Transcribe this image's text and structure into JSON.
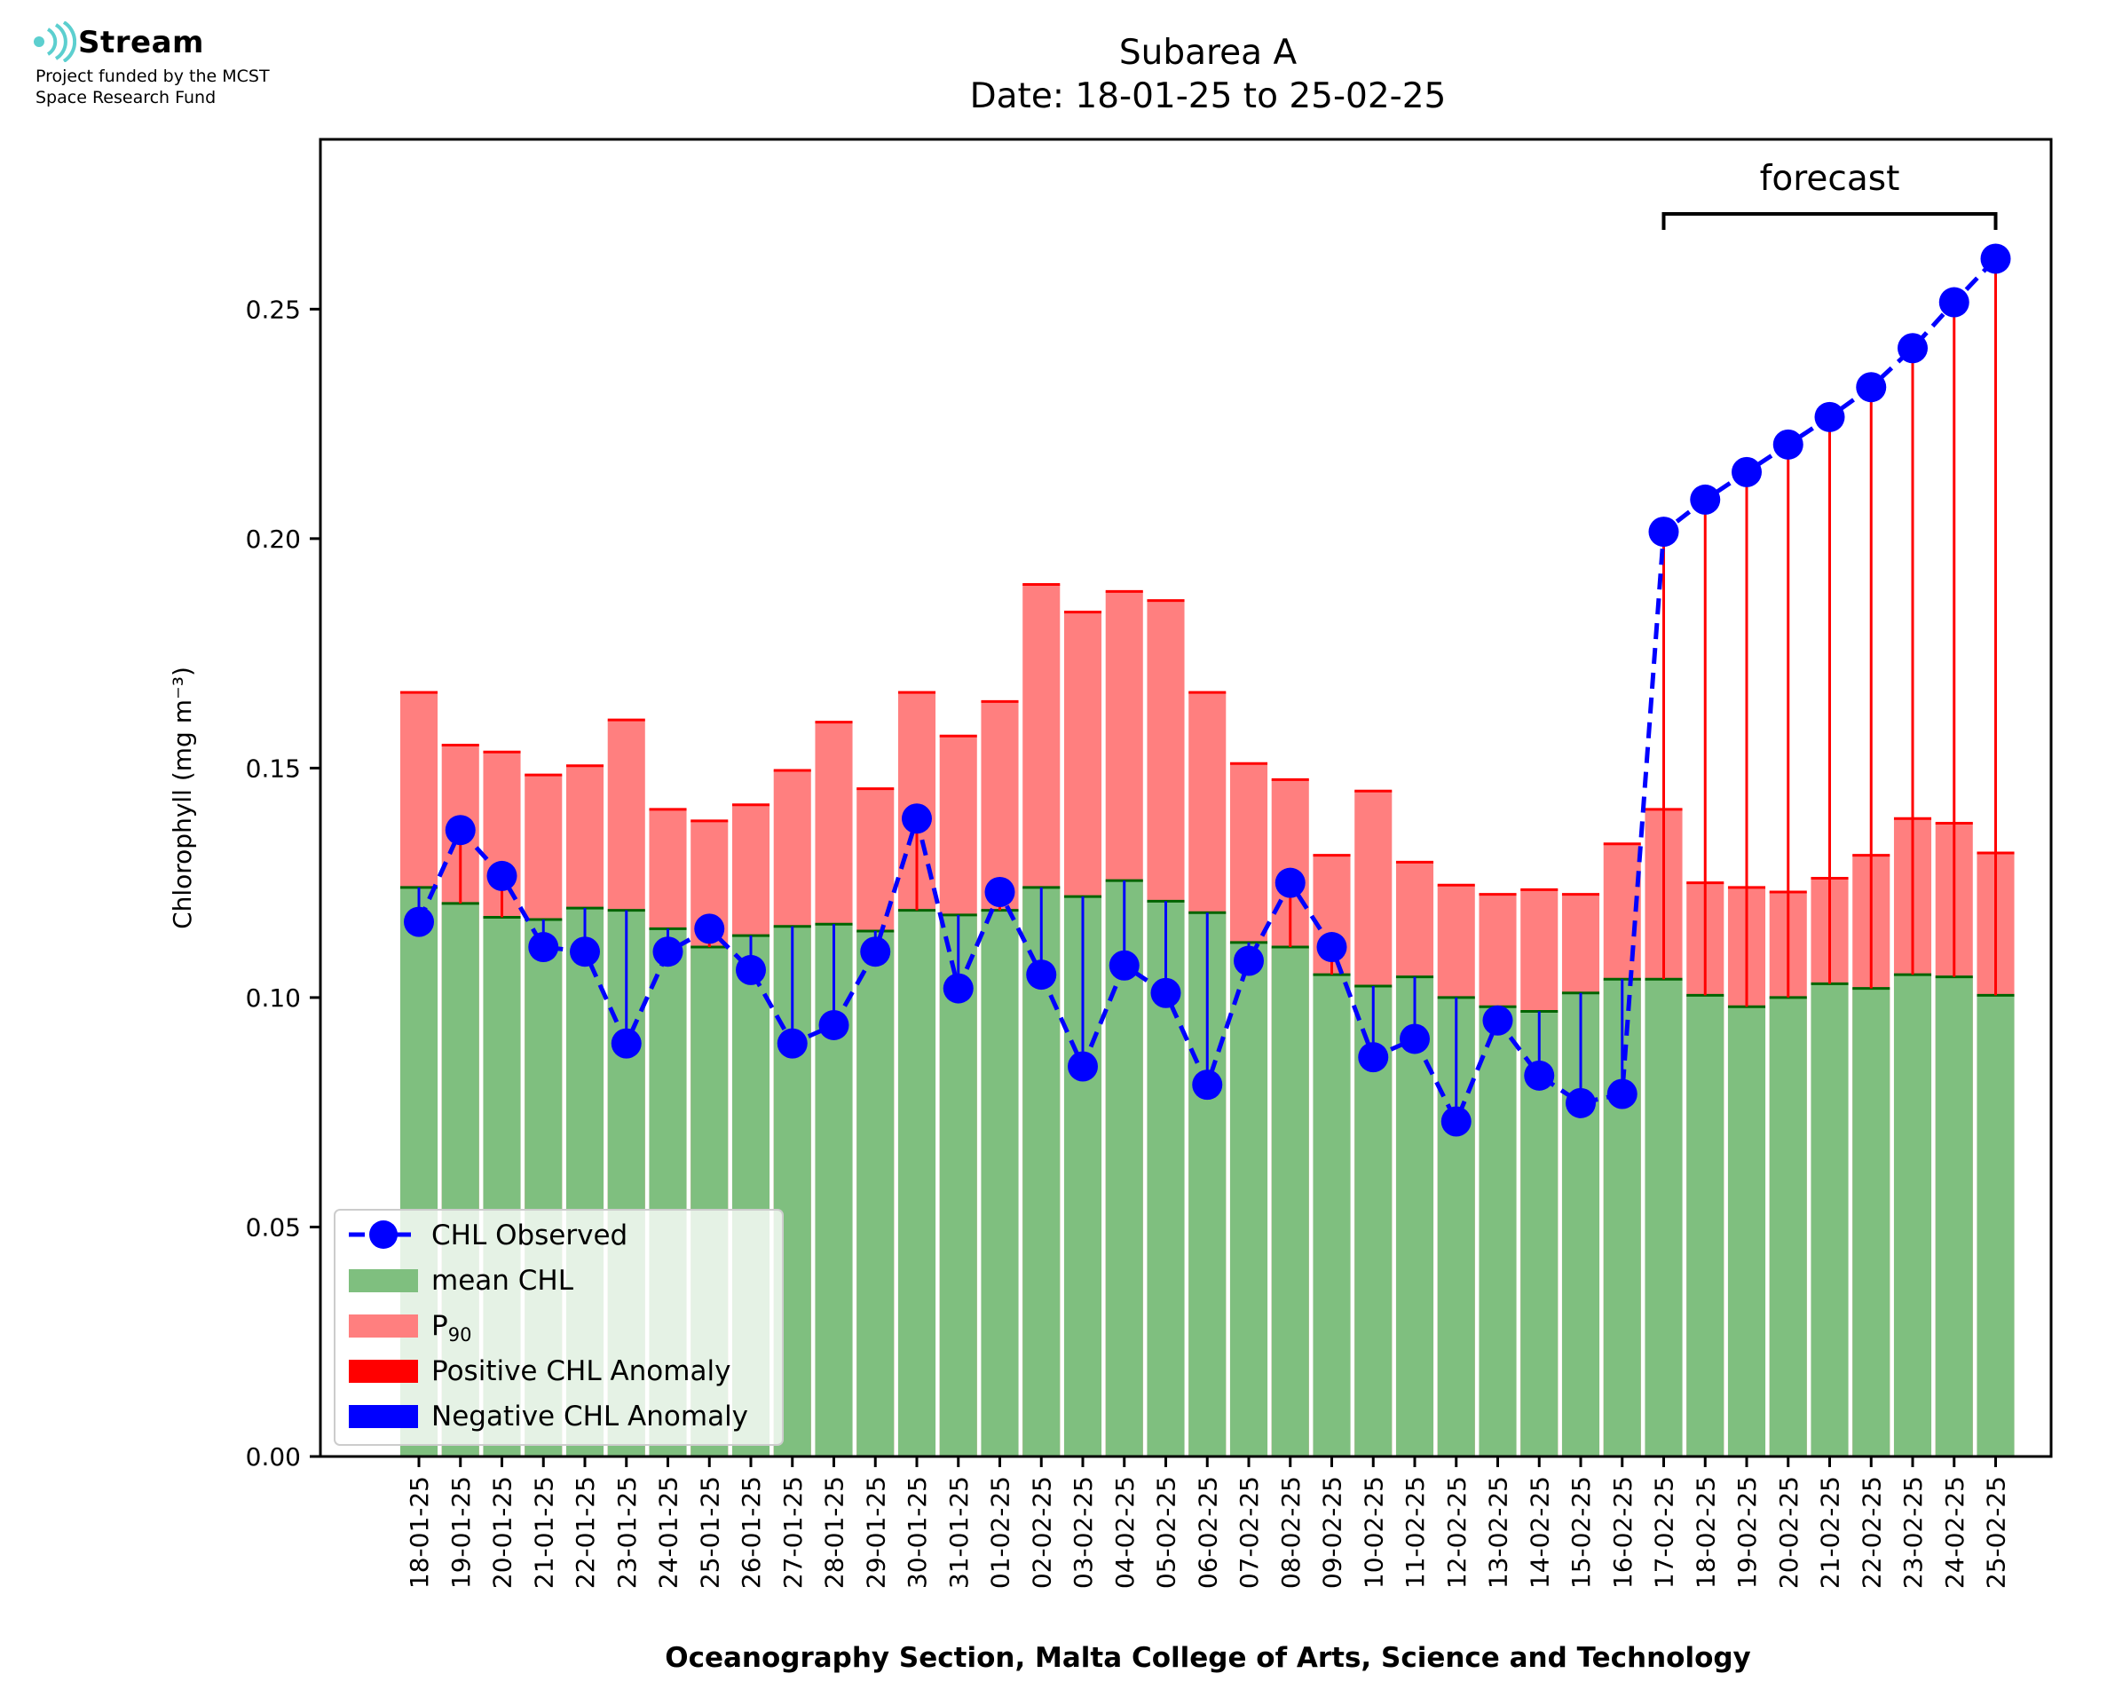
{
  "branding": {
    "logo_name": "Stream",
    "logo_tagline_1": "Project funded by the MCST",
    "logo_tagline_2": "Space Research Fund",
    "logo_icon": "stream-waves-icon"
  },
  "chart_data": {
    "type": "bar",
    "title": "Subarea A",
    "subtitle": "Date: 18-01-25 to 25-02-25",
    "xlabel": "Oceanography Section, Malta College of Arts, Science and Technology",
    "ylabel": "Chlorophyll (mg m⁻³)",
    "ylim": [
      0,
      0.287
    ],
    "yticks": [
      0.0,
      0.05,
      0.1,
      0.15,
      0.2,
      0.25
    ],
    "ytick_labels": [
      "0.00",
      "0.05",
      "0.10",
      "0.15",
      "0.20",
      "0.25"
    ],
    "categories": [
      "18-01-25",
      "19-01-25",
      "20-01-25",
      "21-01-25",
      "22-01-25",
      "23-01-25",
      "24-01-25",
      "25-01-25",
      "26-01-25",
      "27-01-25",
      "28-01-25",
      "29-01-25",
      "30-01-25",
      "31-01-25",
      "01-02-25",
      "02-02-25",
      "03-02-25",
      "04-02-25",
      "05-02-25",
      "06-02-25",
      "07-02-25",
      "08-02-25",
      "09-02-25",
      "10-02-25",
      "11-02-25",
      "12-02-25",
      "13-02-25",
      "14-02-25",
      "15-02-25",
      "16-02-25",
      "17-02-25",
      "18-02-25",
      "19-02-25",
      "20-02-25",
      "21-02-25",
      "22-02-25",
      "23-02-25",
      "24-02-25",
      "25-02-25"
    ],
    "series": [
      {
        "name": "CHL Observed",
        "style": "dashed line with circle markers",
        "values": [
          0.1165,
          0.1365,
          0.1265,
          0.111,
          0.11,
          0.09,
          0.11,
          0.115,
          0.106,
          0.09,
          0.094,
          0.11,
          0.139,
          0.102,
          0.123,
          0.105,
          0.085,
          0.107,
          0.101,
          0.081,
          0.108,
          0.125,
          0.111,
          0.087,
          0.091,
          0.073,
          0.095,
          0.083,
          0.077,
          0.079,
          0.2015,
          0.2085,
          0.2145,
          0.2205,
          0.2265,
          0.233,
          0.2415,
          0.2515,
          0.261
        ]
      },
      {
        "name": "mean CHL",
        "style": "bar",
        "values": [
          0.124,
          0.1205,
          0.1175,
          0.117,
          0.1195,
          0.119,
          0.115,
          0.111,
          0.1135,
          0.1155,
          0.116,
          0.1145,
          0.119,
          0.118,
          0.119,
          0.124,
          0.122,
          0.1255,
          0.121,
          0.1185,
          0.112,
          0.111,
          0.105,
          0.1025,
          0.1045,
          0.1,
          0.098,
          0.097,
          0.101,
          0.104,
          0.104,
          0.1005,
          0.098,
          0.1,
          0.103,
          0.102,
          0.105,
          0.1045,
          0.1005
        ]
      },
      {
        "name": "P₉₀",
        "style": "bar",
        "values": [
          0.1665,
          0.155,
          0.1535,
          0.1485,
          0.1505,
          0.1605,
          0.141,
          0.1385,
          0.142,
          0.1495,
          0.16,
          0.1455,
          0.1665,
          0.157,
          0.1645,
          0.19,
          0.184,
          0.1885,
          0.1865,
          0.1665,
          0.151,
          0.1475,
          0.131,
          0.145,
          0.1295,
          0.1245,
          0.1225,
          0.1235,
          0.1225,
          0.1335,
          0.141,
          0.125,
          0.124,
          0.123,
          0.126,
          0.131,
          0.139,
          0.138,
          0.1315
        ]
      }
    ],
    "legend": {
      "placement": "lower-left",
      "entries": [
        {
          "label": "CHL Observed",
          "kind": "line-marker",
          "color": "#0000ff"
        },
        {
          "label": "mean CHL",
          "kind": "patch",
          "color": "#7fbf7f"
        },
        {
          "label": "P",
          "sub": "90",
          "kind": "patch",
          "color": "#ff7f7f"
        },
        {
          "label": "Positive CHL Anomaly",
          "kind": "patch",
          "color": "#ff0000"
        },
        {
          "label": "Negative CHL Anomaly",
          "kind": "patch",
          "color": "#0000ff"
        }
      ]
    },
    "annotation": {
      "text": "forecast",
      "from": "17-02-25",
      "to": "25-02-25"
    },
    "colors": {
      "observed": "#0000ff",
      "mean": "#7fbf7f",
      "mean_edge": "#006400",
      "p90": "#ff7f7f",
      "p90_edge": "#ff0000",
      "positive": "#ff0000",
      "negative": "#0000ff"
    },
    "grid": false
  }
}
